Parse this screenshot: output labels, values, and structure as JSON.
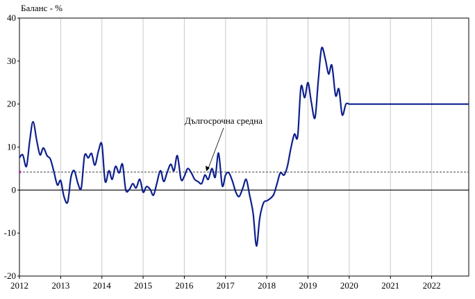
{
  "chart_data": {
    "type": "line",
    "ylabel": "Баланс - %",
    "ylim": [
      -20,
      40
    ],
    "yticks": [
      -20,
      -10,
      0,
      10,
      20,
      30,
      40
    ],
    "xlim": [
      2012.0,
      2022.9
    ],
    "xticks": [
      "2012",
      "2013",
      "2014",
      "2015",
      "2016",
      "2017",
      "2018",
      "2019",
      "2020",
      "2021",
      "2022"
    ],
    "grid": "vertical",
    "annotation": {
      "text": "Дългосрочна средна",
      "value": 4.2
    },
    "series": [
      {
        "color": "#0d1f8c",
        "x": [
          2012.0,
          2012.08,
          2012.17,
          2012.25,
          2012.33,
          2012.42,
          2012.5,
          2012.58,
          2012.67,
          2012.75,
          2012.83,
          2012.92,
          2013.0,
          2013.08,
          2013.17,
          2013.25,
          2013.33,
          2013.42,
          2013.5,
          2013.58,
          2013.67,
          2013.75,
          2013.83,
          2013.92,
          2014.0,
          2014.08,
          2014.17,
          2014.25,
          2014.33,
          2014.42,
          2014.5,
          2014.58,
          2014.67,
          2014.75,
          2014.83,
          2014.92,
          2015.0,
          2015.08,
          2015.17,
          2015.25,
          2015.33,
          2015.42,
          2015.5,
          2015.58,
          2015.67,
          2015.75,
          2015.83,
          2015.92,
          2016.0,
          2016.08,
          2016.17,
          2016.25,
          2016.33,
          2016.42,
          2016.5,
          2016.58,
          2016.67,
          2016.75,
          2016.83,
          2016.92,
          2017.0,
          2017.08,
          2017.17,
          2017.25,
          2017.33,
          2017.42,
          2017.5,
          2017.58,
          2017.67,
          2017.75,
          2017.83,
          2017.92,
          2018.0,
          2018.08,
          2018.17,
          2018.25,
          2018.33,
          2018.42,
          2018.5,
          2018.58,
          2018.67,
          2018.75,
          2018.83,
          2018.92,
          2019.0,
          2019.08,
          2019.17,
          2019.25,
          2019.33,
          2019.42,
          2019.5,
          2019.58,
          2019.67,
          2019.75,
          2019.83,
          2019.92,
          2020.0,
          2020.08,
          2020.17,
          2020.25,
          2020.33,
          2020.42,
          2020.5,
          2020.58,
          2020.67,
          2020.75,
          2020.83,
          2020.92,
          2021.0,
          2021.08,
          2021.17,
          2021.25,
          2021.33,
          2021.42,
          2021.5,
          2021.58,
          2021.67,
          2021.75,
          2021.83,
          2021.92,
          2022.0,
          2022.08,
          2022.17,
          2022.25,
          2022.33,
          2022.42,
          2022.5,
          2022.58,
          2022.67,
          2022.75,
          2022.83,
          2022.9
        ],
        "values": [
          7.5,
          8.2,
          5.5,
          11.5,
          15.9,
          11.5,
          8.2,
          9.8,
          8.0,
          7.2,
          4.5,
          1.2,
          2.2,
          -1.5,
          -2.8,
          3.0,
          4.5,
          1.5,
          0.5,
          8.0,
          7.5,
          8.5,
          5.8,
          9.2,
          10.6,
          2.0,
          4.5,
          2.5,
          5.5,
          4.0,
          6.0,
          0.0,
          0.2,
          1.5,
          0.5,
          2.5,
          -0.5,
          0.8,
          0.2,
          -1.2,
          1.5,
          4.5,
          2.0,
          4.0,
          6.0,
          4.5,
          8.0,
          2.5,
          3.2,
          5.0,
          4.0,
          2.5,
          2.0,
          1.5,
          3.5,
          2.5,
          5.0,
          3.0,
          8.6,
          1.0,
          3.5,
          4.0,
          2.0,
          -0.5,
          -1.5,
          0.5,
          2.5,
          -1.0,
          -5.5,
          -13.0,
          -6.5,
          -3.0,
          -2.5,
          -2.0,
          -1.0,
          1.5,
          4.0,
          3.5,
          5.5,
          9.5,
          13.0,
          12.5,
          24.0,
          21.5,
          25.0,
          20.5,
          16.8,
          25.5,
          33.0,
          30.5,
          27.0,
          29.0,
          22.0,
          23.5,
          17.5,
          20.0,
          20.0,
          20.0,
          20.0,
          20.0,
          20.0,
          20.0,
          20.0,
          20.0,
          20.0,
          20.0,
          20.0,
          20.0,
          20.0,
          20.0,
          20.0,
          20.0,
          20.0,
          20.0,
          20.0,
          20.0,
          20.0,
          20.0,
          20.0,
          20.0,
          20.0,
          20.0,
          20.0,
          20.0,
          20.0,
          20.0,
          20.0,
          20.0,
          20.0,
          20.0,
          20.0,
          20.0
        ]
      }
    ]
  }
}
